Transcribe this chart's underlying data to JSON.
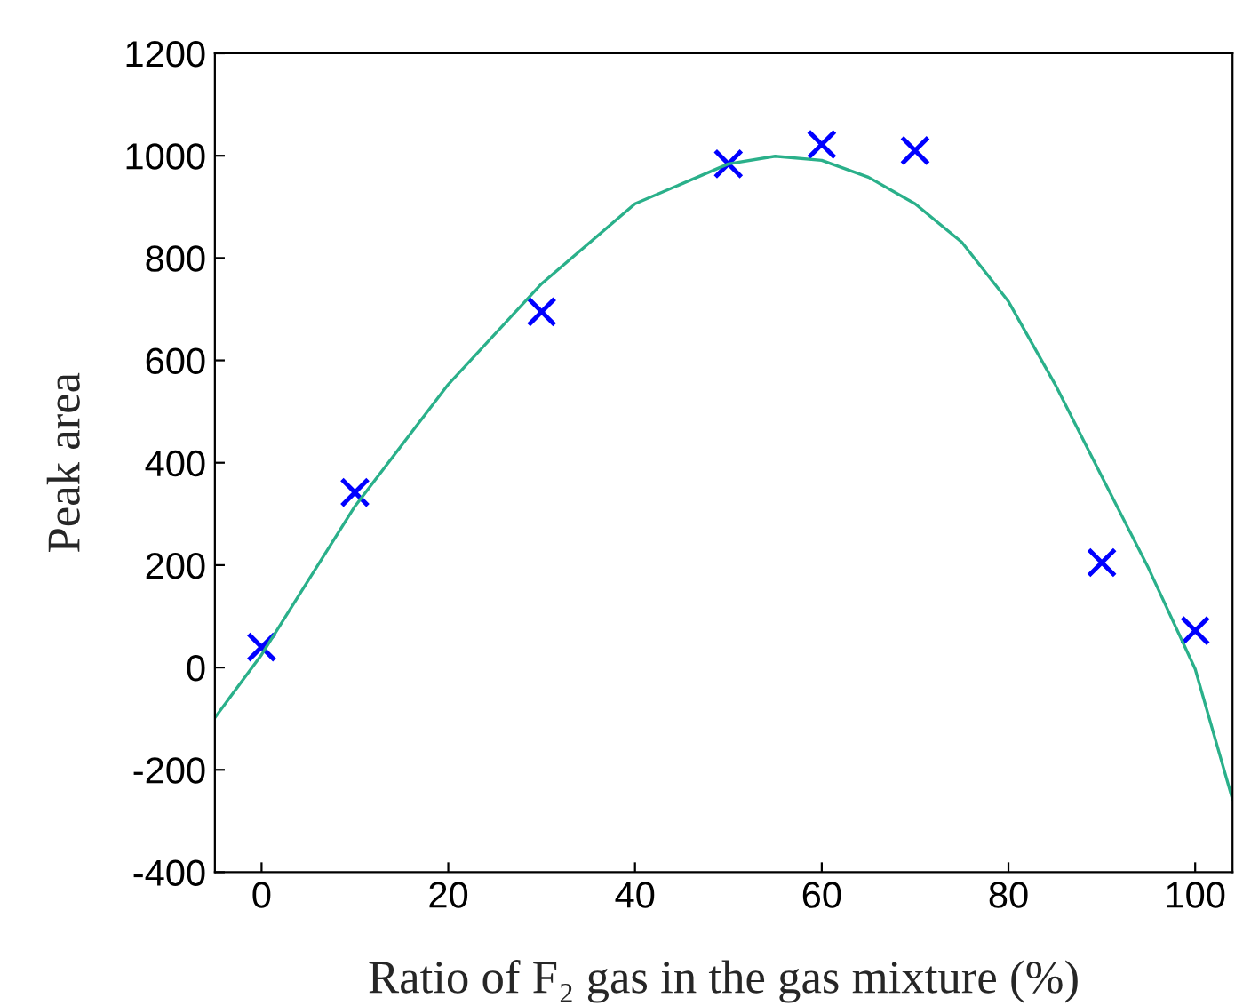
{
  "chart_data": {
    "type": "scatter",
    "xlabel": "Ratio of F₂ gas in the gas mixture (%)",
    "ylabel": "Peak area",
    "xlim": [
      -5,
      104
    ],
    "xticks": [
      0,
      20,
      40,
      60,
      80,
      100
    ],
    "ylim": [
      -400,
      1200
    ],
    "yticks": [
      -400,
      -200,
      0,
      200,
      400,
      600,
      800,
      1000,
      1200
    ],
    "grid": false,
    "legend": false,
    "series": [
      {
        "type": "line",
        "color": "#2ab08a",
        "marker": "none",
        "line_style": "solid",
        "x": [
          -5,
          0,
          10,
          20,
          30,
          40,
          50,
          55,
          60,
          65,
          70,
          75,
          80,
          85,
          90,
          95,
          100,
          104
        ],
        "values": [
          -98,
          25,
          315,
          553,
          750,
          906,
          984,
          999,
          991,
          958,
          906,
          831,
          715,
          553,
          373,
          194,
          -3,
          -258
        ]
      },
      {
        "color": "#0000ff",
        "marker": "cross",
        "x": [
          0,
          10,
          30,
          50,
          60,
          70,
          90,
          100
        ],
        "values": [
          40,
          342,
          695,
          984,
          1022,
          1010,
          205,
          72
        ]
      }
    ]
  }
}
